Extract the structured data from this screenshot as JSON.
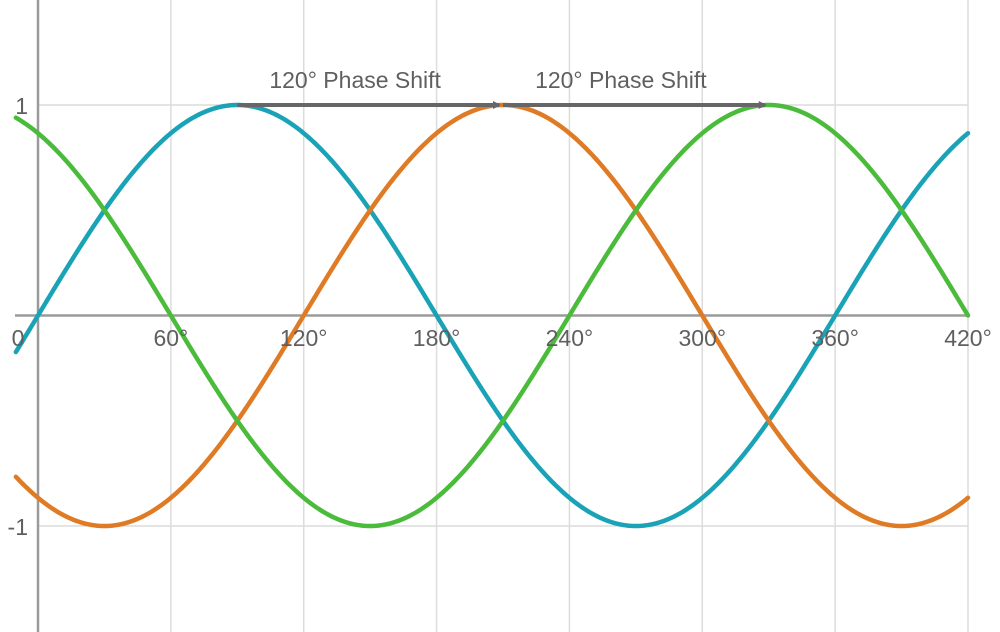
{
  "chart_data": {
    "type": "line",
    "title": "",
    "xlabel": "",
    "ylabel": "",
    "xlim": [
      -10,
      420
    ],
    "ylim": [
      -1.5,
      1.5
    ],
    "grid": true,
    "x_ticks": [
      {
        "value": 0,
        "label": "0"
      },
      {
        "value": 60,
        "label": "60°"
      },
      {
        "value": 120,
        "label": "120°"
      },
      {
        "value": 180,
        "label": "180°"
      },
      {
        "value": 240,
        "label": "240°"
      },
      {
        "value": 300,
        "label": "300°"
      },
      {
        "value": 360,
        "label": "360°"
      },
      {
        "value": 420,
        "label": "420°"
      }
    ],
    "y_ticks": [
      {
        "value": 1,
        "label": "1"
      },
      {
        "value": -1,
        "label": "-1"
      }
    ],
    "series": [
      {
        "function": "sin(x)",
        "phase_deg": 0,
        "amplitude": 1,
        "color": "#1aa3b7",
        "x_range": [
          -10,
          420
        ]
      },
      {
        "function": "sin(x - 120°)",
        "phase_deg": -120,
        "amplitude": 1,
        "color": "#e07b25",
        "x_range": [
          -10,
          420
        ]
      },
      {
        "function": "sin(x + 120°)",
        "phase_deg": 120,
        "amplitude": 1,
        "color": "#4bbb3b",
        "x_range": [
          -10,
          420
        ]
      }
    ],
    "annotations": [
      {
        "text": "120° Phase Shift",
        "arrow_from": [
          90,
          1
        ],
        "arrow_to": [
          210,
          1
        ]
      },
      {
        "text": "120° Phase Shift",
        "arrow_from": [
          210,
          1
        ],
        "arrow_to": [
          330,
          1
        ]
      }
    ],
    "colors": {
      "grid": "#dcdcdc",
      "axis": "#9a9a9a",
      "arrow": "#666666",
      "text": "#5f5f5f"
    }
  }
}
